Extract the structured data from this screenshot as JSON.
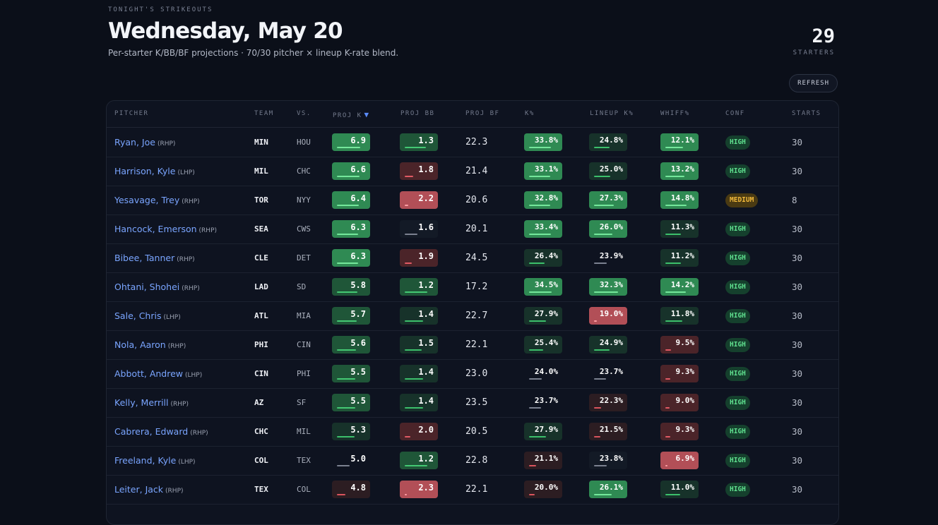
{
  "header": {
    "eyebrow": "TONIGHT'S STRIKEOUTS",
    "title": "Wednesday, May 20",
    "subtitle": "Per-starter K/BB/BF projections · 70/30 pitcher × lineup K-rate blend.",
    "count": "29",
    "count_label": "STARTERS",
    "refresh_label": "REFRESH"
  },
  "colors": {
    "background": "#0b0f19",
    "link": "#7aa5ff",
    "positive": "#2f8a53",
    "negative": "#b24f57",
    "high_badge": "#5fe08f",
    "medium_badge": "#f2b93b",
    "sort_accent": "#5b8cff"
  },
  "table": {
    "columns": [
      "PITCHER",
      "TEAM",
      "VS.",
      "PROJ K",
      "PROJ BB",
      "PROJ BF",
      "K%",
      "LINEUP K%",
      "WHIFF%",
      "CONF",
      "STARTS"
    ],
    "sort_icon": "triangle-down-icon",
    "rows": [
      {
        "name": "Ryan, Joe",
        "hand": "(RHP)",
        "team": "MIN",
        "opp": "HOU",
        "proj_k": "6.9",
        "proj_k_tone": "g-strong",
        "proj_k_fill": 0.82,
        "proj_bb": "1.3",
        "proj_bb_tone": "g-mid",
        "proj_bb_fill": 0.76,
        "proj_bf": "22.3",
        "k_pct": "33.8%",
        "k_pct_tone": "g-strong",
        "k_pct_fill": 0.78,
        "lineup_k": "24.8%",
        "lineup_k_tone": "g-dim",
        "lineup_k_fill": 0.55,
        "whiff": "12.1%",
        "whiff_tone": "g-strong",
        "whiff_fill": 0.62,
        "conf": "HIGH",
        "conf_tone": "conf-high",
        "starts": "30"
      },
      {
        "name": "Harrison, Kyle",
        "hand": "(LHP)",
        "team": "MIL",
        "opp": "CHC",
        "proj_k": "6.6",
        "proj_k_tone": "g-strong",
        "proj_k_fill": 0.8,
        "proj_bb": "1.8",
        "proj_bb_tone": "r-mid",
        "proj_bb_fill": 0.3,
        "proj_bf": "21.4",
        "k_pct": "33.1%",
        "k_pct_tone": "g-strong",
        "k_pct_fill": 0.76,
        "lineup_k": "25.0%",
        "lineup_k_tone": "g-dim",
        "lineup_k_fill": 0.58,
        "whiff": "13.2%",
        "whiff_tone": "g-strong",
        "whiff_fill": 0.68,
        "conf": "HIGH",
        "conf_tone": "conf-high",
        "starts": "30"
      },
      {
        "name": "Yesavage, Trey",
        "hand": "(RHP)",
        "team": "TOR",
        "opp": "NYY",
        "proj_k": "6.4",
        "proj_k_tone": "g-strong",
        "proj_k_fill": 0.78,
        "proj_bb": "2.2",
        "proj_bb_tone": "r-strong",
        "proj_bb_fill": 0.12,
        "proj_bf": "20.6",
        "k_pct": "32.8%",
        "k_pct_tone": "g-strong",
        "k_pct_fill": 0.75,
        "lineup_k": "27.3%",
        "lineup_k_tone": "g-strong",
        "lineup_k_fill": 0.7,
        "whiff": "14.8%",
        "whiff_tone": "g-strong",
        "whiff_fill": 0.76,
        "conf": "MEDIUM",
        "conf_tone": "conf-medium",
        "starts": "8"
      },
      {
        "name": "Hancock, Emerson",
        "hand": "(RHP)",
        "team": "SEA",
        "opp": "CWS",
        "proj_k": "6.3",
        "proj_k_tone": "g-strong",
        "proj_k_fill": 0.76,
        "proj_bb": "1.6",
        "proj_bb_tone": "n-dim",
        "proj_bb_fill": 0.45,
        "proj_bf": "20.1",
        "k_pct": "33.4%",
        "k_pct_tone": "g-strong",
        "k_pct_fill": 0.77,
        "lineup_k": "26.0%",
        "lineup_k_tone": "g-strong",
        "lineup_k_fill": 0.64,
        "whiff": "11.3%",
        "whiff_tone": "g-dim",
        "whiff_fill": 0.56,
        "conf": "HIGH",
        "conf_tone": "conf-high",
        "starts": "30"
      },
      {
        "name": "Bibee, Tanner",
        "hand": "(RHP)",
        "team": "CLE",
        "opp": "DET",
        "proj_k": "6.3",
        "proj_k_tone": "g-strong",
        "proj_k_fill": 0.76,
        "proj_bb": "1.9",
        "proj_bb_tone": "r-mid",
        "proj_bb_fill": 0.25,
        "proj_bf": "24.5",
        "k_pct": "26.4%",
        "k_pct_tone": "g-dim",
        "k_pct_fill": 0.55,
        "lineup_k": "23.9%",
        "lineup_k_tone": "n-plain",
        "lineup_k_fill": 0.45,
        "whiff": "11.2%",
        "whiff_tone": "g-dim",
        "whiff_fill": 0.55,
        "conf": "HIGH",
        "conf_tone": "conf-high",
        "starts": "30"
      },
      {
        "name": "Ohtani, Shohei",
        "hand": "(RHP)",
        "team": "LAD",
        "opp": "SD",
        "proj_k": "5.8",
        "proj_k_tone": "g-mid",
        "proj_k_fill": 0.72,
        "proj_bb": "1.2",
        "proj_bb_tone": "g-mid",
        "proj_bb_fill": 0.8,
        "proj_bf": "17.2",
        "k_pct": "34.5%",
        "k_pct_tone": "g-strong",
        "k_pct_fill": 0.8,
        "lineup_k": "32.3%",
        "lineup_k_tone": "g-strong",
        "lineup_k_fill": 0.85,
        "whiff": "14.2%",
        "whiff_tone": "g-strong",
        "whiff_fill": 0.72,
        "conf": "HIGH",
        "conf_tone": "conf-high",
        "starts": "30"
      },
      {
        "name": "Sale, Chris",
        "hand": "(LHP)",
        "team": "ATL",
        "opp": "MIA",
        "proj_k": "5.7",
        "proj_k_tone": "g-mid",
        "proj_k_fill": 0.7,
        "proj_bb": "1.4",
        "proj_bb_tone": "g-dim",
        "proj_bb_fill": 0.65,
        "proj_bf": "22.7",
        "k_pct": "27.9%",
        "k_pct_tone": "g-dim",
        "k_pct_fill": 0.6,
        "lineup_k": "19.0%",
        "lineup_k_tone": "r-strong",
        "lineup_k_fill": 0.1,
        "whiff": "11.8%",
        "whiff_tone": "g-dim",
        "whiff_fill": 0.6,
        "conf": "HIGH",
        "conf_tone": "conf-high",
        "starts": "30"
      },
      {
        "name": "Nola, Aaron",
        "hand": "(RHP)",
        "team": "PHI",
        "opp": "CIN",
        "proj_k": "5.6",
        "proj_k_tone": "g-mid",
        "proj_k_fill": 0.68,
        "proj_bb": "1.5",
        "proj_bb_tone": "g-dim",
        "proj_bb_fill": 0.6,
        "proj_bf": "22.1",
        "k_pct": "25.4%",
        "k_pct_tone": "g-dim",
        "k_pct_fill": 0.5,
        "lineup_k": "24.9%",
        "lineup_k_tone": "g-dim",
        "lineup_k_fill": 0.56,
        "whiff": "9.5%",
        "whiff_tone": "r-mid",
        "whiff_fill": 0.2,
        "conf": "HIGH",
        "conf_tone": "conf-high",
        "starts": "30"
      },
      {
        "name": "Abbott, Andrew",
        "hand": "(LHP)",
        "team": "CIN",
        "opp": "PHI",
        "proj_k": "5.5",
        "proj_k_tone": "g-mid",
        "proj_k_fill": 0.66,
        "proj_bb": "1.4",
        "proj_bb_tone": "g-dim",
        "proj_bb_fill": 0.65,
        "proj_bf": "23.0",
        "k_pct": "24.0%",
        "k_pct_tone": "n-plain",
        "k_pct_fill": 0.45,
        "lineup_k": "23.7%",
        "lineup_k_tone": "n-plain",
        "lineup_k_fill": 0.42,
        "whiff": "9.3%",
        "whiff_tone": "r-mid",
        "whiff_fill": 0.18,
        "conf": "HIGH",
        "conf_tone": "conf-high",
        "starts": "30"
      },
      {
        "name": "Kelly, Merrill",
        "hand": "(RHP)",
        "team": "AZ",
        "opp": "SF",
        "proj_k": "5.5",
        "proj_k_tone": "g-mid",
        "proj_k_fill": 0.66,
        "proj_bb": "1.4",
        "proj_bb_tone": "g-dim",
        "proj_bb_fill": 0.65,
        "proj_bf": "23.5",
        "k_pct": "23.7%",
        "k_pct_tone": "n-plain",
        "k_pct_fill": 0.42,
        "lineup_k": "22.3%",
        "lineup_k_tone": "r-dim",
        "lineup_k_fill": 0.25,
        "whiff": "9.0%",
        "whiff_tone": "r-mid",
        "whiff_fill": 0.15,
        "conf": "HIGH",
        "conf_tone": "conf-high",
        "starts": "30"
      },
      {
        "name": "Cabrera, Edward",
        "hand": "(RHP)",
        "team": "CHC",
        "opp": "MIL",
        "proj_k": "5.3",
        "proj_k_tone": "g-dim",
        "proj_k_fill": 0.62,
        "proj_bb": "2.0",
        "proj_bb_tone": "r-mid",
        "proj_bb_fill": 0.2,
        "proj_bf": "20.5",
        "k_pct": "27.9%",
        "k_pct_tone": "g-dim",
        "k_pct_fill": 0.6,
        "lineup_k": "21.5%",
        "lineup_k_tone": "r-dim",
        "lineup_k_fill": 0.22,
        "whiff": "9.3%",
        "whiff_tone": "r-mid",
        "whiff_fill": 0.18,
        "conf": "HIGH",
        "conf_tone": "conf-high",
        "starts": "30"
      },
      {
        "name": "Freeland, Kyle",
        "hand": "(LHP)",
        "team": "COL",
        "opp": "TEX",
        "proj_k": "5.0",
        "proj_k_tone": "n-plain",
        "proj_k_fill": 0.45,
        "proj_bb": "1.2",
        "proj_bb_tone": "g-mid",
        "proj_bb_fill": 0.8,
        "proj_bf": "22.8",
        "k_pct": "21.1%",
        "k_pct_tone": "r-dim",
        "k_pct_fill": 0.25,
        "lineup_k": "23.8%",
        "lineup_k_tone": "n-dim",
        "lineup_k_fill": 0.45,
        "whiff": "6.9%",
        "whiff_tone": "r-strong",
        "whiff_fill": 0.08,
        "conf": "HIGH",
        "conf_tone": "conf-high",
        "starts": "30"
      },
      {
        "name": "Leiter, Jack",
        "hand": "(RHP)",
        "team": "TEX",
        "opp": "COL",
        "proj_k": "4.8",
        "proj_k_tone": "r-dim",
        "proj_k_fill": 0.3,
        "proj_bb": "2.3",
        "proj_bb_tone": "r-strong",
        "proj_bb_fill": 0.08,
        "proj_bf": "22.1",
        "k_pct": "20.0%",
        "k_pct_tone": "r-dim",
        "k_pct_fill": 0.2,
        "lineup_k": "26.1%",
        "lineup_k_tone": "g-strong",
        "lineup_k_fill": 0.62,
        "whiff": "11.0%",
        "whiff_tone": "g-dim",
        "whiff_fill": 0.52,
        "conf": "HIGH",
        "conf_tone": "conf-high",
        "starts": "30"
      }
    ]
  }
}
